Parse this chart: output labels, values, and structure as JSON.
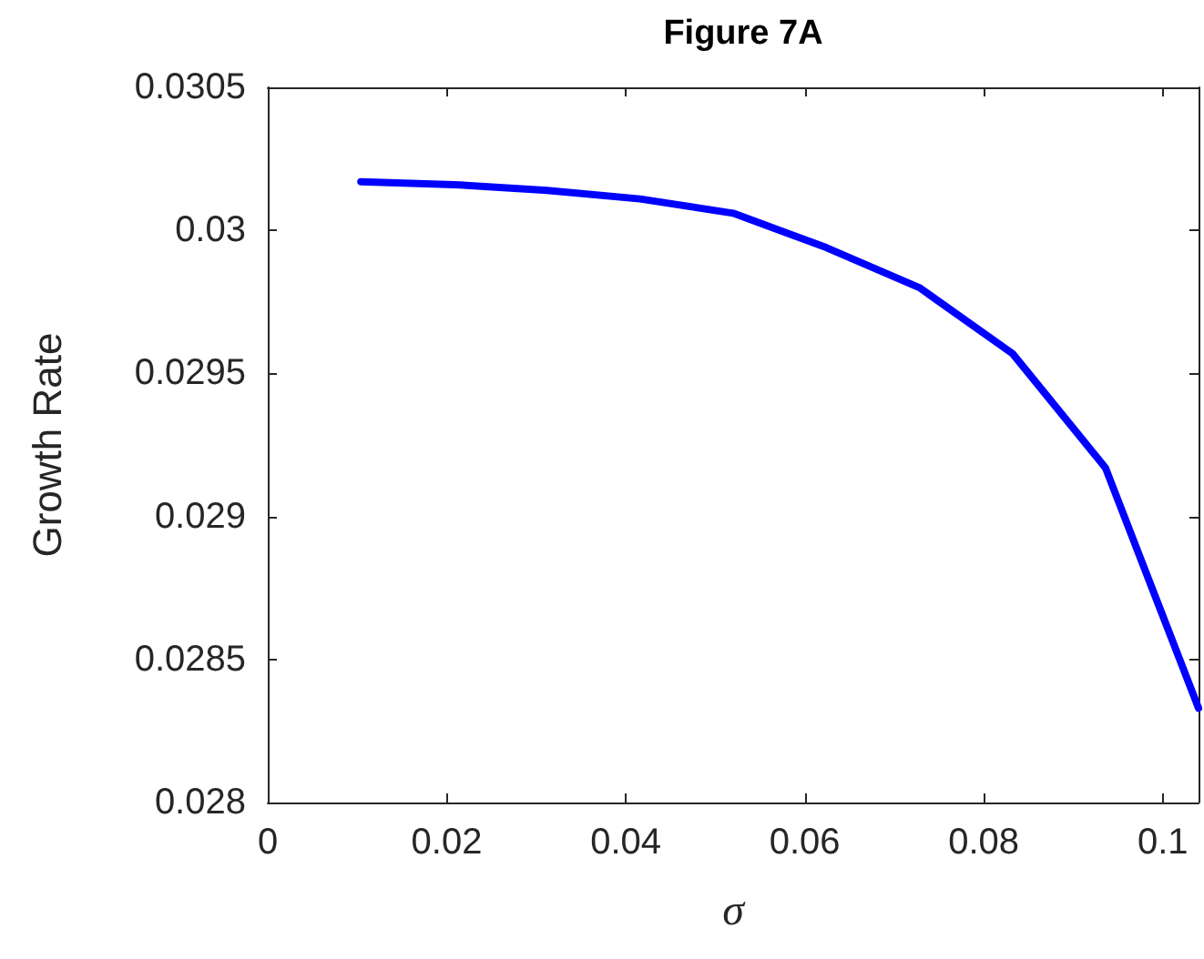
{
  "chart_data": {
    "type": "line",
    "title": "Figure 7A",
    "xlabel": "σ",
    "ylabel": "Growth Rate",
    "x": [
      0.0104,
      0.0208,
      0.0312,
      0.0416,
      0.052,
      0.0624,
      0.0728,
      0.0832,
      0.0936,
      0.104
    ],
    "series": [
      {
        "color": "#0000ff",
        "values": [
          0.03017,
          0.03016,
          0.03014,
          0.03011,
          0.03006,
          0.02994,
          0.0298,
          0.02957,
          0.02917,
          0.02833
        ]
      }
    ],
    "xlim": [
      0,
      0.104
    ],
    "xticks": [
      0,
      0.02,
      0.04,
      0.06,
      0.08,
      0.1
    ],
    "ylim": [
      0.028,
      0.0305
    ],
    "yticks": [
      0.028,
      0.0285,
      0.029,
      0.0295,
      0.03,
      0.0305
    ],
    "grid": false,
    "marker": "none",
    "line_style": "solid"
  }
}
